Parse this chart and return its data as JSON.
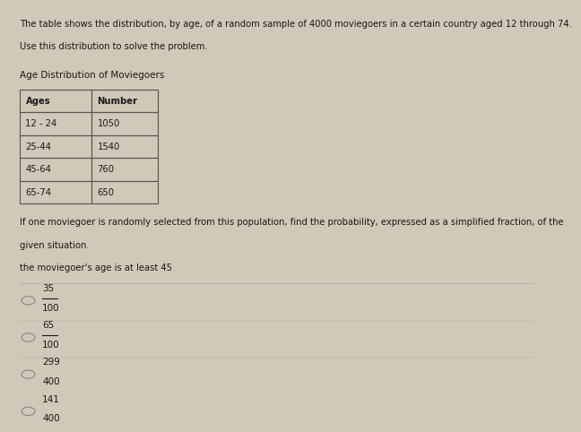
{
  "background_color": "#d0c8b8",
  "content_bg": "#e8e0d0",
  "intro_text_line1": "The table shows the distribution, by age, of a random sample of 4000 moviegoers in a certain country aged 12 through 74.",
  "intro_text_line2": "Use this distribution to solve the problem.",
  "table_title": "Age Distribution of Moviegoers",
  "table_headers": [
    "Ages",
    "Number"
  ],
  "table_rows": [
    [
      "12 - 24",
      "1050"
    ],
    [
      "25-44",
      "1540"
    ],
    [
      "45-64",
      "760"
    ],
    [
      "65-74",
      "650"
    ]
  ],
  "question_text_line1": "If one moviegoer is randomly selected from this population, find the probability, expressed as a simplified fraction, of the",
  "question_text_line2": "given situation.",
  "sub_question": "the moviegoer's age is at least 45",
  "choices": [
    {
      "numerator": "35",
      "denominator": "100"
    },
    {
      "numerator": "65",
      "denominator": "100"
    },
    {
      "numerator": "299",
      "denominator": "400"
    },
    {
      "numerator": "141",
      "denominator": "400"
    }
  ],
  "text_color": "#1a1a1a",
  "table_border_color": "#555555",
  "choice_circle_color": "#888888",
  "separator_color": "#aaaaaa"
}
